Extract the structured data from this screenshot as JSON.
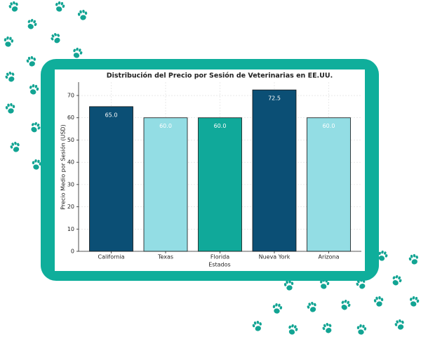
{
  "chart_data": {
    "type": "bar",
    "title": "Distribución del Precio por Sesión de Veterinarias en EE.UU.",
    "x_label": "Estados",
    "y_label": "Precio Medio por Sesión (USD)",
    "categories": [
      "California",
      "Texas",
      "Florida",
      "Nueva York",
      "Arizona"
    ],
    "values": [
      65,
      60,
      60,
      72.5,
      60
    ],
    "value_labels": [
      "65.0",
      "60.0",
      "60.0",
      "72.5",
      "60.0"
    ],
    "colors": [
      "#0b4f75",
      "#93dde4",
      "#10a99a",
      "#0b4f75",
      "#93dde4"
    ],
    "ylim": [
      0,
      76
    ],
    "yticks": [
      0,
      10,
      20,
      30,
      40,
      50,
      60,
      70
    ],
    "grid": true
  }
}
